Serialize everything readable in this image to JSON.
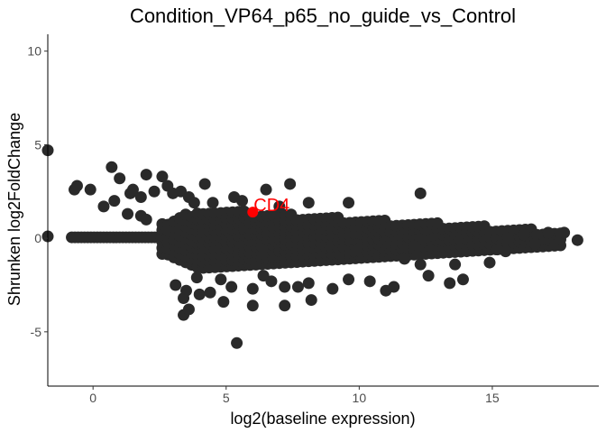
{
  "chart_data": {
    "type": "scatter",
    "title": "Condition_VP64_p65_no_guide_vs_Control",
    "xlabel": "log2(baseline expression)",
    "ylabel": "Shrunken log2FoldChange",
    "xlim": [
      -1.7,
      19.0
    ],
    "ylim": [
      -7.9,
      10.9
    ],
    "x_ticks": [
      0,
      5,
      10,
      15
    ],
    "y_ticks": [
      -5,
      0,
      5,
      10
    ],
    "grid": false,
    "legend": "none",
    "point_color": "#2a2a2a",
    "highlight": {
      "label": "CD4",
      "x": 6.0,
      "y": 1.4,
      "color": "#ff0000"
    },
    "outliers": [
      {
        "x": -1.7,
        "y": 4.7
      },
      {
        "x": -1.7,
        "y": 0.1
      },
      {
        "x": -0.7,
        "y": 2.6
      },
      {
        "x": -0.6,
        "y": 2.8
      },
      {
        "x": -0.1,
        "y": 2.6
      },
      {
        "x": 0.4,
        "y": 1.7
      },
      {
        "x": 0.7,
        "y": 3.8
      },
      {
        "x": 0.8,
        "y": 2.0
      },
      {
        "x": 1.0,
        "y": 3.2
      },
      {
        "x": 1.3,
        "y": 1.3
      },
      {
        "x": 1.4,
        "y": 2.4
      },
      {
        "x": 1.5,
        "y": 2.6
      },
      {
        "x": 1.8,
        "y": 1.2
      },
      {
        "x": 1.8,
        "y": 2.2
      },
      {
        "x": 2.0,
        "y": 3.4
      },
      {
        "x": 2.0,
        "y": 1.0
      },
      {
        "x": 2.3,
        "y": 2.5
      },
      {
        "x": 2.6,
        "y": 3.3
      },
      {
        "x": 2.8,
        "y": 2.8
      },
      {
        "x": 3.0,
        "y": 2.4
      },
      {
        "x": 3.3,
        "y": 2.5
      },
      {
        "x": 3.6,
        "y": 2.2
      },
      {
        "x": 3.8,
        "y": 1.9
      },
      {
        "x": 4.2,
        "y": 2.9
      },
      {
        "x": 4.5,
        "y": 1.9
      },
      {
        "x": 5.3,
        "y": 2.2
      },
      {
        "x": 5.6,
        "y": 2.0
      },
      {
        "x": 6.5,
        "y": 2.6
      },
      {
        "x": 7.0,
        "y": 1.7
      },
      {
        "x": 7.4,
        "y": 2.9
      },
      {
        "x": 8.1,
        "y": 1.9
      },
      {
        "x": 9.6,
        "y": 1.9
      },
      {
        "x": 12.3,
        "y": 2.4
      },
      {
        "x": 16.2,
        "y": 0.2
      },
      {
        "x": 17.1,
        "y": 0.3
      },
      {
        "x": 17.7,
        "y": 0.3
      },
      {
        "x": 18.2,
        "y": -0.1
      },
      {
        "x": 15.5,
        "y": -0.7
      },
      {
        "x": 15.2,
        "y": -0.6
      },
      {
        "x": 16.6,
        "y": -0.3
      },
      {
        "x": 14.9,
        "y": -1.3
      },
      {
        "x": 13.6,
        "y": -1.4
      },
      {
        "x": 13.9,
        "y": -2.2
      },
      {
        "x": 13.4,
        "y": -2.4
      },
      {
        "x": 12.6,
        "y": -2.0
      },
      {
        "x": 12.3,
        "y": -1.4
      },
      {
        "x": 11.7,
        "y": -1.1
      },
      {
        "x": 11.3,
        "y": -2.6
      },
      {
        "x": 11.0,
        "y": -2.8
      },
      {
        "x": 10.4,
        "y": -2.3
      },
      {
        "x": 9.6,
        "y": -2.2
      },
      {
        "x": 9.0,
        "y": -2.7
      },
      {
        "x": 8.1,
        "y": -2.4
      },
      {
        "x": 7.7,
        "y": -2.6
      },
      {
        "x": 7.2,
        "y": -2.6
      },
      {
        "x": 6.7,
        "y": -2.3
      },
      {
        "x": 6.4,
        "y": -2.0
      },
      {
        "x": 6.0,
        "y": -2.7
      },
      {
        "x": 5.2,
        "y": -2.6
      },
      {
        "x": 4.8,
        "y": -2.2
      },
      {
        "x": 4.4,
        "y": -2.9
      },
      {
        "x": 4.0,
        "y": -3.0
      },
      {
        "x": 3.9,
        "y": -2.1
      },
      {
        "x": 3.5,
        "y": -2.8
      },
      {
        "x": 3.1,
        "y": -2.5
      },
      {
        "x": 3.4,
        "y": -3.2
      },
      {
        "x": 3.4,
        "y": -4.1
      },
      {
        "x": 3.6,
        "y": -3.8
      },
      {
        "x": 4.9,
        "y": -3.4
      },
      {
        "x": 6.0,
        "y": -3.6
      },
      {
        "x": 7.2,
        "y": -3.6
      },
      {
        "x": 8.2,
        "y": -3.3
      },
      {
        "x": 5.4,
        "y": -5.6
      }
    ]
  }
}
